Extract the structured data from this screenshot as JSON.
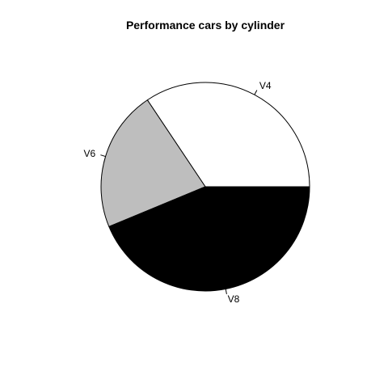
{
  "chart_data": {
    "type": "pie",
    "title": "Performance cars by cylinder",
    "categories": [
      "V4",
      "V6",
      "V8"
    ],
    "values": [
      11,
      7,
      14
    ],
    "colors": [
      "#ffffff",
      "#bebebe",
      "#000000"
    ],
    "start_angle_deg": 0,
    "direction": "counterclockwise",
    "legend": "none"
  }
}
